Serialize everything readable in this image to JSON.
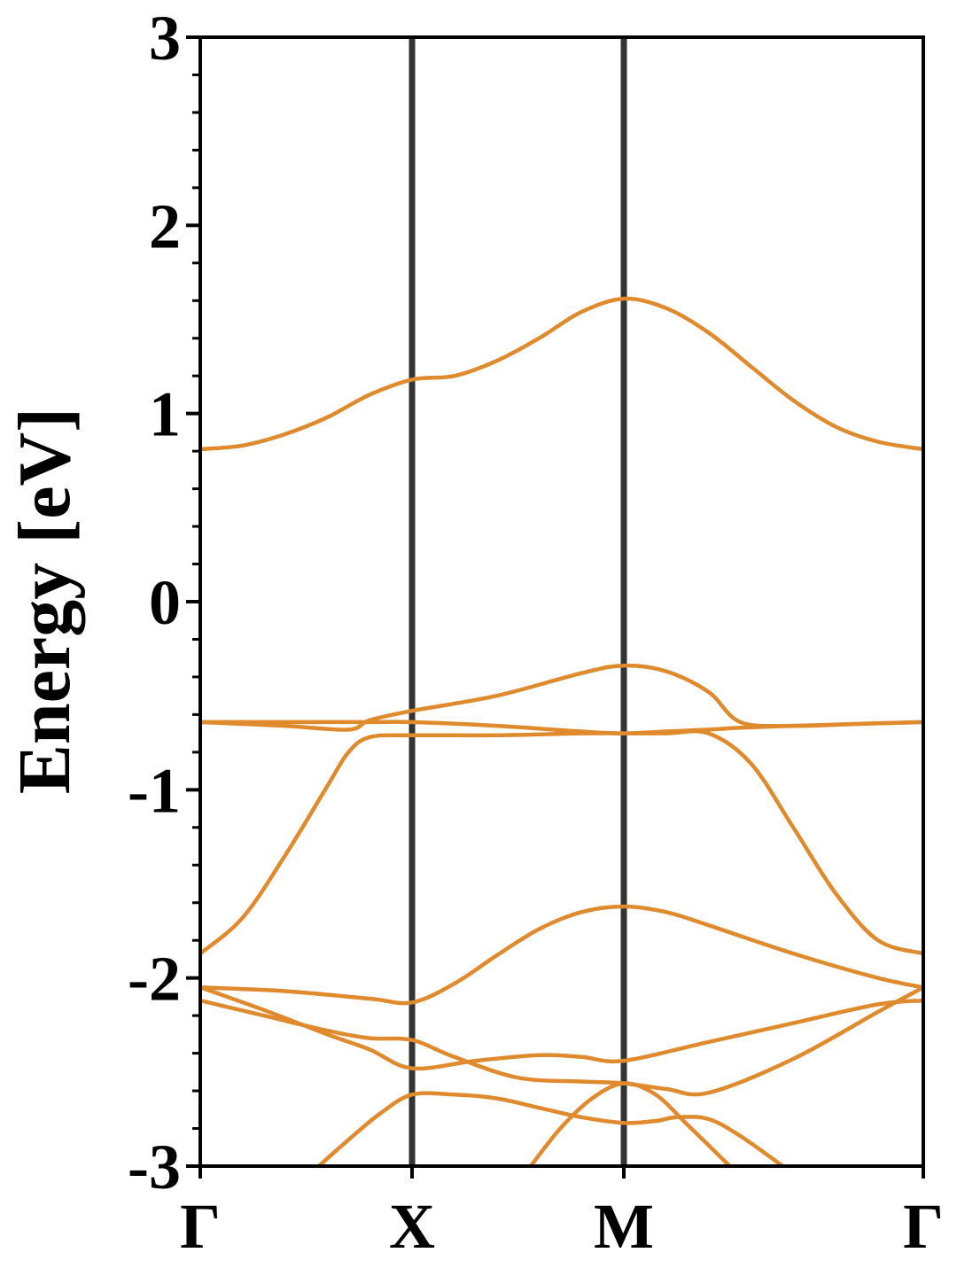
{
  "chart_data": {
    "type": "line",
    "title": "",
    "xlabel": "",
    "ylabel": "Energy [eV]",
    "ylim": [
      -3,
      3
    ],
    "yticks": [
      "3",
      "2",
      "1",
      "0",
      "-1",
      "-2",
      "-3"
    ],
    "kpoints": [
      {
        "label": "Γ",
        "x": 0
      },
      {
        "label": "X",
        "x": 1
      },
      {
        "label": "M",
        "x": 2
      },
      {
        "label": "Γ",
        "x": 3.414
      }
    ],
    "grid": false,
    "colors": {
      "band": "#E08A2E",
      "kline": "#333333",
      "axis": "#000000"
    },
    "series": [
      {
        "x": [
          0,
          0.2,
          0.4,
          0.6,
          0.8,
          1.0,
          1.2,
          1.4,
          1.6,
          1.8,
          2.0,
          2.2,
          2.4,
          2.6,
          2.8,
          3.0,
          3.2,
          3.414
        ],
        "values": [
          0.81,
          0.83,
          0.89,
          0.98,
          1.1,
          1.18,
          1.2,
          1.28,
          1.4,
          1.54,
          1.61,
          1.56,
          1.43,
          1.25,
          1.07,
          0.93,
          0.85,
          0.81
        ]
      },
      {
        "x": [
          0,
          0.4,
          0.8,
          1.0,
          1.4,
          1.8,
          2.0,
          2.2,
          2.4,
          2.55,
          2.8,
          3.1,
          3.414
        ],
        "values": [
          -0.64,
          -0.64,
          -0.64,
          -0.64,
          -0.66,
          -0.69,
          -0.7,
          -0.69,
          -0.68,
          -0.67,
          -0.66,
          -0.65,
          -0.64
        ]
      },
      {
        "x": [
          0,
          0.4,
          0.7,
          0.8,
          1.0,
          1.4,
          1.8,
          2.0,
          2.2,
          2.4,
          2.55,
          2.8,
          3.1,
          3.414
        ],
        "values": [
          -0.64,
          -0.66,
          -0.68,
          -0.63,
          -0.58,
          -0.5,
          -0.38,
          -0.34,
          -0.37,
          -0.48,
          -0.64,
          -0.66,
          -0.65,
          -0.64
        ]
      },
      {
        "x": [
          0,
          0.2,
          0.4,
          0.6,
          0.7,
          0.8,
          1.0,
          1.4,
          1.8,
          2.0,
          2.2,
          2.4,
          2.6,
          2.8,
          3.0,
          3.2,
          3.414
        ],
        "values": [
          -1.87,
          -1.68,
          -1.35,
          -0.98,
          -0.8,
          -0.72,
          -0.71,
          -0.71,
          -0.7,
          -0.7,
          -0.7,
          -0.7,
          -0.86,
          -1.2,
          -1.55,
          -1.8,
          -1.87
        ]
      },
      {
        "x": [
          0,
          0.4,
          0.8,
          1.0,
          1.2,
          1.4,
          1.6,
          1.8,
          2.0,
          2.2,
          2.4,
          2.8,
          3.2,
          3.414
        ],
        "values": [
          -2.05,
          -2.07,
          -2.11,
          -2.13,
          -2.03,
          -1.88,
          -1.74,
          -1.65,
          -1.62,
          -1.65,
          -1.72,
          -1.87,
          -2.0,
          -2.05
        ]
      },
      {
        "x": [
          0,
          0.3,
          0.6,
          0.8,
          1.0,
          1.3,
          1.6,
          1.8,
          2.0,
          2.4,
          2.8,
          3.2,
          3.414
        ],
        "values": [
          -2.05,
          -2.17,
          -2.3,
          -2.38,
          -2.48,
          -2.44,
          -2.41,
          -2.42,
          -2.44,
          -2.34,
          -2.24,
          -2.14,
          -2.12
        ]
      },
      {
        "x": [
          0,
          0.3,
          0.6,
          0.8,
          1.0,
          1.2,
          1.5,
          1.8,
          2.0,
          2.2,
          2.4,
          2.8,
          3.2,
          3.414
        ],
        "values": [
          -2.12,
          -2.2,
          -2.28,
          -2.32,
          -2.33,
          -2.42,
          -2.53,
          -2.55,
          -2.56,
          -2.59,
          -2.61,
          -2.43,
          -2.18,
          -2.05
        ]
      },
      {
        "x": [
          0.56,
          0.7,
          0.85,
          1.0,
          1.2,
          1.4,
          1.6,
          1.8,
          2.0,
          2.15,
          2.25,
          2.4,
          2.55,
          2.75
        ],
        "values": [
          -3.0,
          -2.86,
          -2.72,
          -2.62,
          -2.62,
          -2.64,
          -2.69,
          -2.74,
          -2.77,
          -2.76,
          -2.74,
          -2.75,
          -2.84,
          -3.0
        ]
      },
      {
        "x": [
          1.56,
          1.7,
          1.85,
          2.0,
          2.15,
          2.3,
          2.5
        ],
        "values": [
          -3.0,
          -2.8,
          -2.64,
          -2.56,
          -2.62,
          -2.78,
          -3.0
        ]
      }
    ]
  }
}
